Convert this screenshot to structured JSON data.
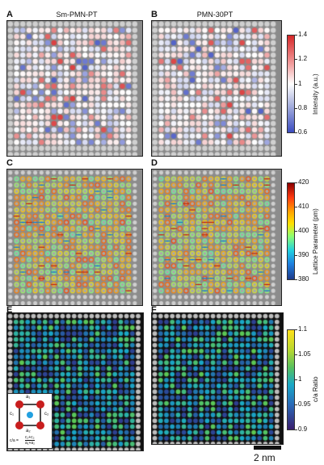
{
  "panels": [
    {
      "letter": "A",
      "title": "Sm-PMN-PT"
    },
    {
      "letter": "B",
      "title": "PMN-30PT"
    },
    {
      "letter": "C",
      "title": ""
    },
    {
      "letter": "D",
      "title": ""
    },
    {
      "letter": "E",
      "title": ""
    },
    {
      "letter": "F",
      "title": ""
    }
  ],
  "colorbars": {
    "intensity": {
      "label": "Intensity (a.u.)",
      "ticks": [
        "1.4",
        "1.2",
        "1",
        "0.8",
        "0.6"
      ],
      "colors": [
        "#d62728",
        "#ffffff",
        "#3b4cc0"
      ]
    },
    "lattice": {
      "label": "Lattice Parameter (pm)",
      "ticks": [
        "420",
        "410",
        "400",
        "390",
        "380"
      ],
      "colors": [
        "#8b0000",
        "#ff4500",
        "#ffd700",
        "#7fff7f",
        "#00bfff",
        "#1e3a8a"
      ]
    },
    "ratio": {
      "label": "c/a Ratio",
      "ticks": [
        "1.1",
        "1.05",
        "1",
        "0.95",
        "0.9"
      ],
      "colors": [
        "#ffe11a",
        "#66cc44",
        "#19a8c8",
        "#2b4a9a",
        "#3a1e6e"
      ]
    }
  },
  "inset": {
    "a1": "a₁",
    "a2": "a₂",
    "c1": "c₁",
    "c2": "c₂",
    "formula_left": "c/a =",
    "formula_num": "c₁+c₂",
    "formula_den": "a₁+a₂"
  },
  "scalebar": {
    "label": "2 nm"
  }
}
